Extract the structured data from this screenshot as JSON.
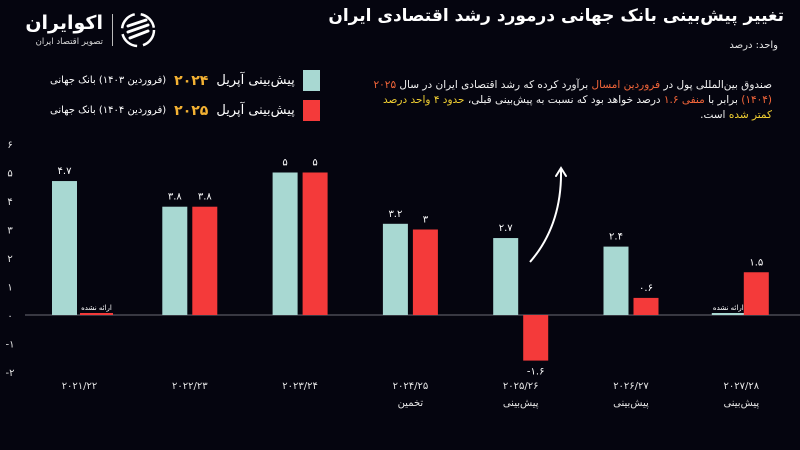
{
  "header": {
    "title": "تغییر پیش‌بینی بانک جهانی درمورد رشد اقتصادی ایران",
    "unit": "واحد: درصد"
  },
  "logo": {
    "name": "اکوایران",
    "subtitle": "تصویر اقتصاد ایران",
    "icon": "ekoiran-logo-icon"
  },
  "legend": [
    {
      "prefix": "پیش‌بینی آپریل",
      "year": "۲۰۲۴",
      "suffix": "(فروردین ۱۴۰۳) بانک جهانی",
      "color": "#a8d8d2"
    },
    {
      "prefix": "پیش‌بینی آپریل",
      "year": "۲۰۲۵",
      "suffix": "(فروردین ۱۴۰۴) بانک جهانی",
      "color": "#f43a3a"
    }
  ],
  "note": {
    "p1": "صندوق بین‌المللی پول در ",
    "p2": "فروردین امسال",
    "p3": " برآورد کرده که رشد اقتصادی ایران در سال ",
    "p4": "۲۰۲۵ (۱۴۰۴)",
    "p5": " برابر با ",
    "p6": "منفی ۱.۶",
    "p7": " درصد خواهد بود که نسبت به پیش‌بینی قبلی، ",
    "p8": "حدود ۴ واحد درصد کمتر شده",
    "p9": " است."
  },
  "chart_data": {
    "type": "bar",
    "title": "تغییر پیش‌بینی بانک جهانی درمورد رشد اقتصادی ایران",
    "ylabel": "واحد: درصد",
    "ylim": [
      -2,
      6
    ],
    "yticks": [
      "-۲",
      "-۱",
      "۰",
      "۱",
      "۲",
      "۳",
      "۴",
      "۵",
      "۶"
    ],
    "ytick_values": [
      -2,
      -1,
      0,
      1,
      2,
      3,
      4,
      5,
      6
    ],
    "grid": false,
    "legend_position": "top-left",
    "categories": [
      "۲۰۲۱/۲۲",
      "۲۰۲۲/۲۳",
      "۲۰۲۳/۲۴",
      "۲۰۲۴/۲۵",
      "۲۰۲۵/۲۶",
      "۲۰۲۶/۲۷",
      "۲۰۲۷/۲۸"
    ],
    "category_sublabels": [
      "",
      "",
      "",
      "تخمین",
      "پیش‌بینی",
      "پیش‌بینی",
      "پیش‌بینی"
    ],
    "not_provided_label": "ارائه نشده",
    "series": [
      {
        "name": "پیش‌بینی آپریل ۲۰۲۴ (فروردین ۱۴۰۳) بانک جهانی",
        "color": "#a8d8d2",
        "values": [
          4.7,
          3.8,
          5,
          3.2,
          2.7,
          2.4,
          null
        ],
        "labels": [
          "۴.۷",
          "۳.۸",
          "۵",
          "۳.۲",
          "۲.۷",
          "۲.۴",
          ""
        ]
      },
      {
        "name": "پیش‌بینی آپریل ۲۰۲۵ (فروردین ۱۴۰۴) بانک جهانی",
        "color": "#f43a3a",
        "values": [
          null,
          3.8,
          5,
          3,
          -1.6,
          0.6,
          1.5
        ],
        "labels": [
          "",
          "۳.۸",
          "۵",
          "۳",
          "-۱.۶",
          "۰.۶",
          "۱.۵"
        ]
      }
    ],
    "annotation": "upward-arrow"
  }
}
